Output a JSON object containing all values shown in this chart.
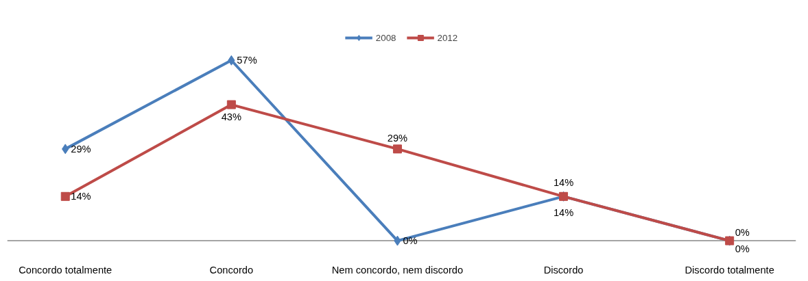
{
  "chart_data": {
    "type": "line",
    "categories": [
      "Concordo totalmente",
      "Concordo",
      "Nem concordo, nem discordo",
      "Discordo",
      "Discordo totalmente"
    ],
    "series": [
      {
        "name": "2008",
        "color": "#4a7ebb",
        "marker": "diamond",
        "values": [
          29,
          57,
          0,
          14,
          0
        ],
        "value_labels": [
          "29%",
          "57%",
          "0%",
          "14%",
          "0%"
        ]
      },
      {
        "name": "2012",
        "color": "#be4b48",
        "marker": "square",
        "values": [
          14,
          43,
          29,
          14,
          0
        ],
        "value_labels": [
          "14%",
          "43%",
          "29%",
          "14%",
          "0%"
        ]
      }
    ],
    "legend": "top",
    "grid": false
  }
}
